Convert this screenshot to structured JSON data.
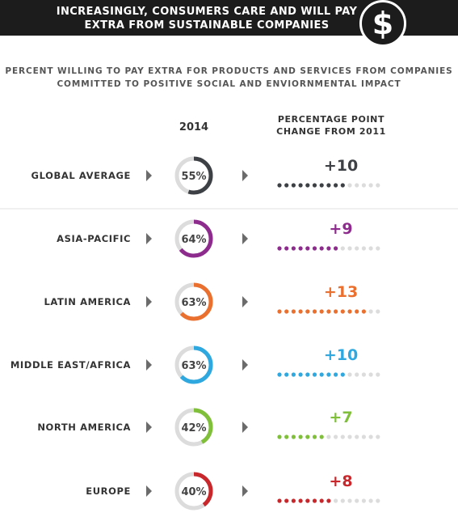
{
  "banner": {
    "title": "INCREASINGLY, CONSUMERS CARE AND WILL PAY EXTRA FROM SUSTAINABLE COMPANIES",
    "icon": "dollar-icon",
    "icon_glyph": "$"
  },
  "subtitle": "PERCENT WILLING TO PAY EXTRA FOR PRODUCTS AND SERVICES FROM COMPANIES COMMITTED TO POSITIVE SOCIAL AND ENVIORNMENTAL IMPACT",
  "columns": {
    "year": "2014",
    "change": "PERCENTAGE POINT CHANGE FROM 2011"
  },
  "colors": {
    "global": "#3d4045",
    "asia": "#8e2c8e",
    "latam": "#ea7030",
    "mea": "#2fa8e0",
    "na": "#7fbf3a",
    "europe": "#c8282c",
    "track": "#dcdcdc",
    "arrow": "#6b6b6b"
  },
  "chart_data": {
    "type": "table",
    "regions": [
      {
        "name": "GLOBAL AVERAGE",
        "pct_2014": 55,
        "pct_label": "55%",
        "change": 10,
        "change_label": "+10",
        "color": "#3d4045"
      },
      {
        "name": "ASIA-PACIFIC",
        "pct_2014": 64,
        "pct_label": "64%",
        "change": 9,
        "change_label": "+9",
        "color": "#8e2c8e"
      },
      {
        "name": "LATIN AMERICA",
        "pct_2014": 63,
        "pct_label": "63%",
        "change": 13,
        "change_label": "+13",
        "color": "#ea7030"
      },
      {
        "name": "MIDDLE EAST/AFRICA",
        "pct_2014": 63,
        "pct_label": "63%",
        "change": 10,
        "change_label": "+10",
        "color": "#2fa8e0"
      },
      {
        "name": "NORTH AMERICA",
        "pct_2014": 42,
        "pct_label": "42%",
        "change": 7,
        "change_label": "+7",
        "color": "#7fbf3a"
      },
      {
        "name": "EUROPE",
        "pct_2014": 40,
        "pct_label": "40%",
        "change": 8,
        "change_label": "+8",
        "color": "#c8282c"
      }
    ],
    "dot_scale_max": 15
  }
}
